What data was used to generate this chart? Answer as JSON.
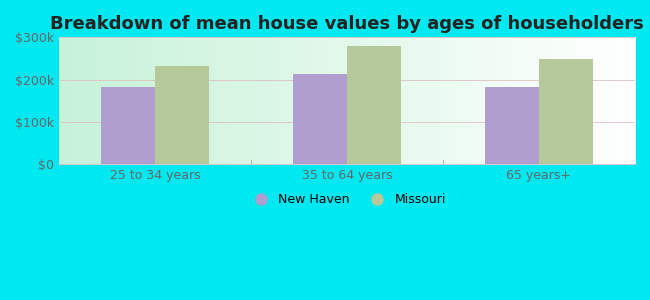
{
  "title": "Breakdown of mean house values by ages of householders",
  "categories": [
    "25 to 34 years",
    "35 to 64 years",
    "65 years+"
  ],
  "new_haven_values": [
    183000,
    213000,
    183000
  ],
  "missouri_values": [
    233000,
    280000,
    248000
  ],
  "bar_color_new_haven": "#b09ece",
  "bar_color_missouri": "#b5c99a",
  "ylim": [
    0,
    300000
  ],
  "yticks": [
    0,
    100000,
    200000,
    300000
  ],
  "ytick_labels": [
    "$0",
    "$100k",
    "$200k",
    "$300k"
  ],
  "legend_new_haven": "New Haven",
  "legend_missouri": "Missouri",
  "background_outer": "#00e8f0",
  "title_fontsize": 13,
  "tick_fontsize": 9,
  "legend_fontsize": 9,
  "bar_width": 0.28
}
